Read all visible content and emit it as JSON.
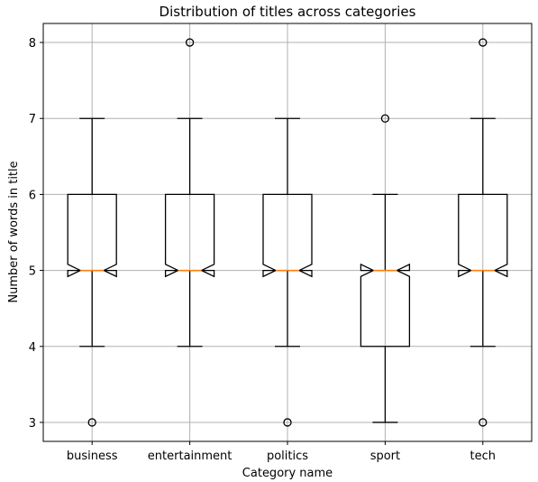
{
  "chart_data": {
    "type": "box",
    "title": "Distribution of titles across categories",
    "xlabel": "Category name",
    "ylabel": "Number of words in title",
    "categories": [
      "business",
      "entertainment",
      "politics",
      "sport",
      "tech"
    ],
    "ylim": [
      2.75,
      8.25
    ],
    "yticks": [
      "3",
      "4",
      "5",
      "6",
      "7",
      "8"
    ],
    "grid": true,
    "notched": true,
    "colors": {
      "box": "#000000",
      "median": "#ff7f0e",
      "grid": "#b0b0b0"
    },
    "boxes": [
      {
        "category": "business",
        "whislo": 4,
        "q1": 5,
        "median": 5,
        "q3": 6,
        "whishi": 7,
        "notch_lo": 4.92,
        "notch_hi": 5.08,
        "fliers": [
          3
        ]
      },
      {
        "category": "entertainment",
        "whislo": 4,
        "q1": 5,
        "median": 5,
        "q3": 6,
        "whishi": 7,
        "notch_lo": 4.92,
        "notch_hi": 5.08,
        "fliers": [
          8
        ]
      },
      {
        "category": "politics",
        "whislo": 4,
        "q1": 5,
        "median": 5,
        "q3": 6,
        "whishi": 7,
        "notch_lo": 4.92,
        "notch_hi": 5.08,
        "fliers": [
          3
        ]
      },
      {
        "category": "sport",
        "whislo": 3,
        "q1": 4,
        "median": 5,
        "q3": 5,
        "whishi": 6,
        "notch_lo": 4.92,
        "notch_hi": 5.08,
        "fliers": [
          7
        ]
      },
      {
        "category": "tech",
        "whislo": 4,
        "q1": 5,
        "median": 5,
        "q3": 6,
        "whishi": 7,
        "notch_lo": 4.92,
        "notch_hi": 5.08,
        "fliers": [
          3,
          8
        ]
      }
    ]
  }
}
